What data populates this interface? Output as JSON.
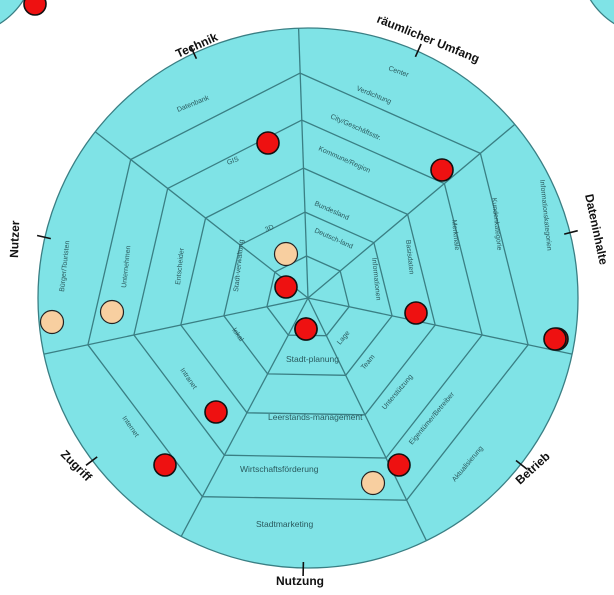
{
  "axes": {
    "technik": "Technik",
    "raeumlich": "räumlicher Umfang",
    "datenin": "Dateninhalte",
    "betrieb": "Betrieb",
    "nutzung": "Nutzung",
    "zugriff": "Zugriff",
    "nutzer": "Nutzer"
  },
  "segments": {
    "technik": [
      "Datenbank",
      "GIS",
      "3D"
    ],
    "raeumlich": [
      "Center",
      "Verdichtung",
      "City/Geschäftsstr.",
      "Kommune/Region",
      "Bundesland",
      "Deutsch-land"
    ],
    "datenin": [
      "Informationskategorien",
      "Kundenkategorie",
      "Merkmale",
      "Basisdaten",
      "Informationen"
    ],
    "betrieb": [
      "Aktualisierung",
      "Eigentümer/Betreiber",
      "Unterstützung",
      "Team",
      "Lage"
    ],
    "nutzung": [
      "Stadtmarketing",
      "Wirtschaftsförderung",
      "Leerstands-management",
      "Stadt-planung"
    ],
    "zugriff": [
      "Internet",
      "Intranet",
      "lokal"
    ],
    "nutzer": [
      "Bürger/Touristen",
      "Unternehmen",
      "Entscheider",
      "Stadt-verwaltung"
    ]
  },
  "markers": [
    {
      "type": "red"
    },
    {
      "type": "red"
    },
    {
      "type": "red"
    },
    {
      "type": "red"
    },
    {
      "type": "red"
    },
    {
      "type": "red"
    },
    {
      "type": "red"
    },
    {
      "type": "red"
    },
    {
      "type": "red"
    },
    {
      "type": "red"
    },
    {
      "type": "red"
    },
    {
      "type": "red"
    },
    {
      "type": "peach"
    },
    {
      "type": "peach"
    },
    {
      "type": "peach"
    },
    {
      "type": "peach"
    }
  ],
  "colors": {
    "fill": "#7fe3e6",
    "line": "#3a7f84",
    "red": "#ee1111",
    "peach": "#f8cfa0"
  }
}
